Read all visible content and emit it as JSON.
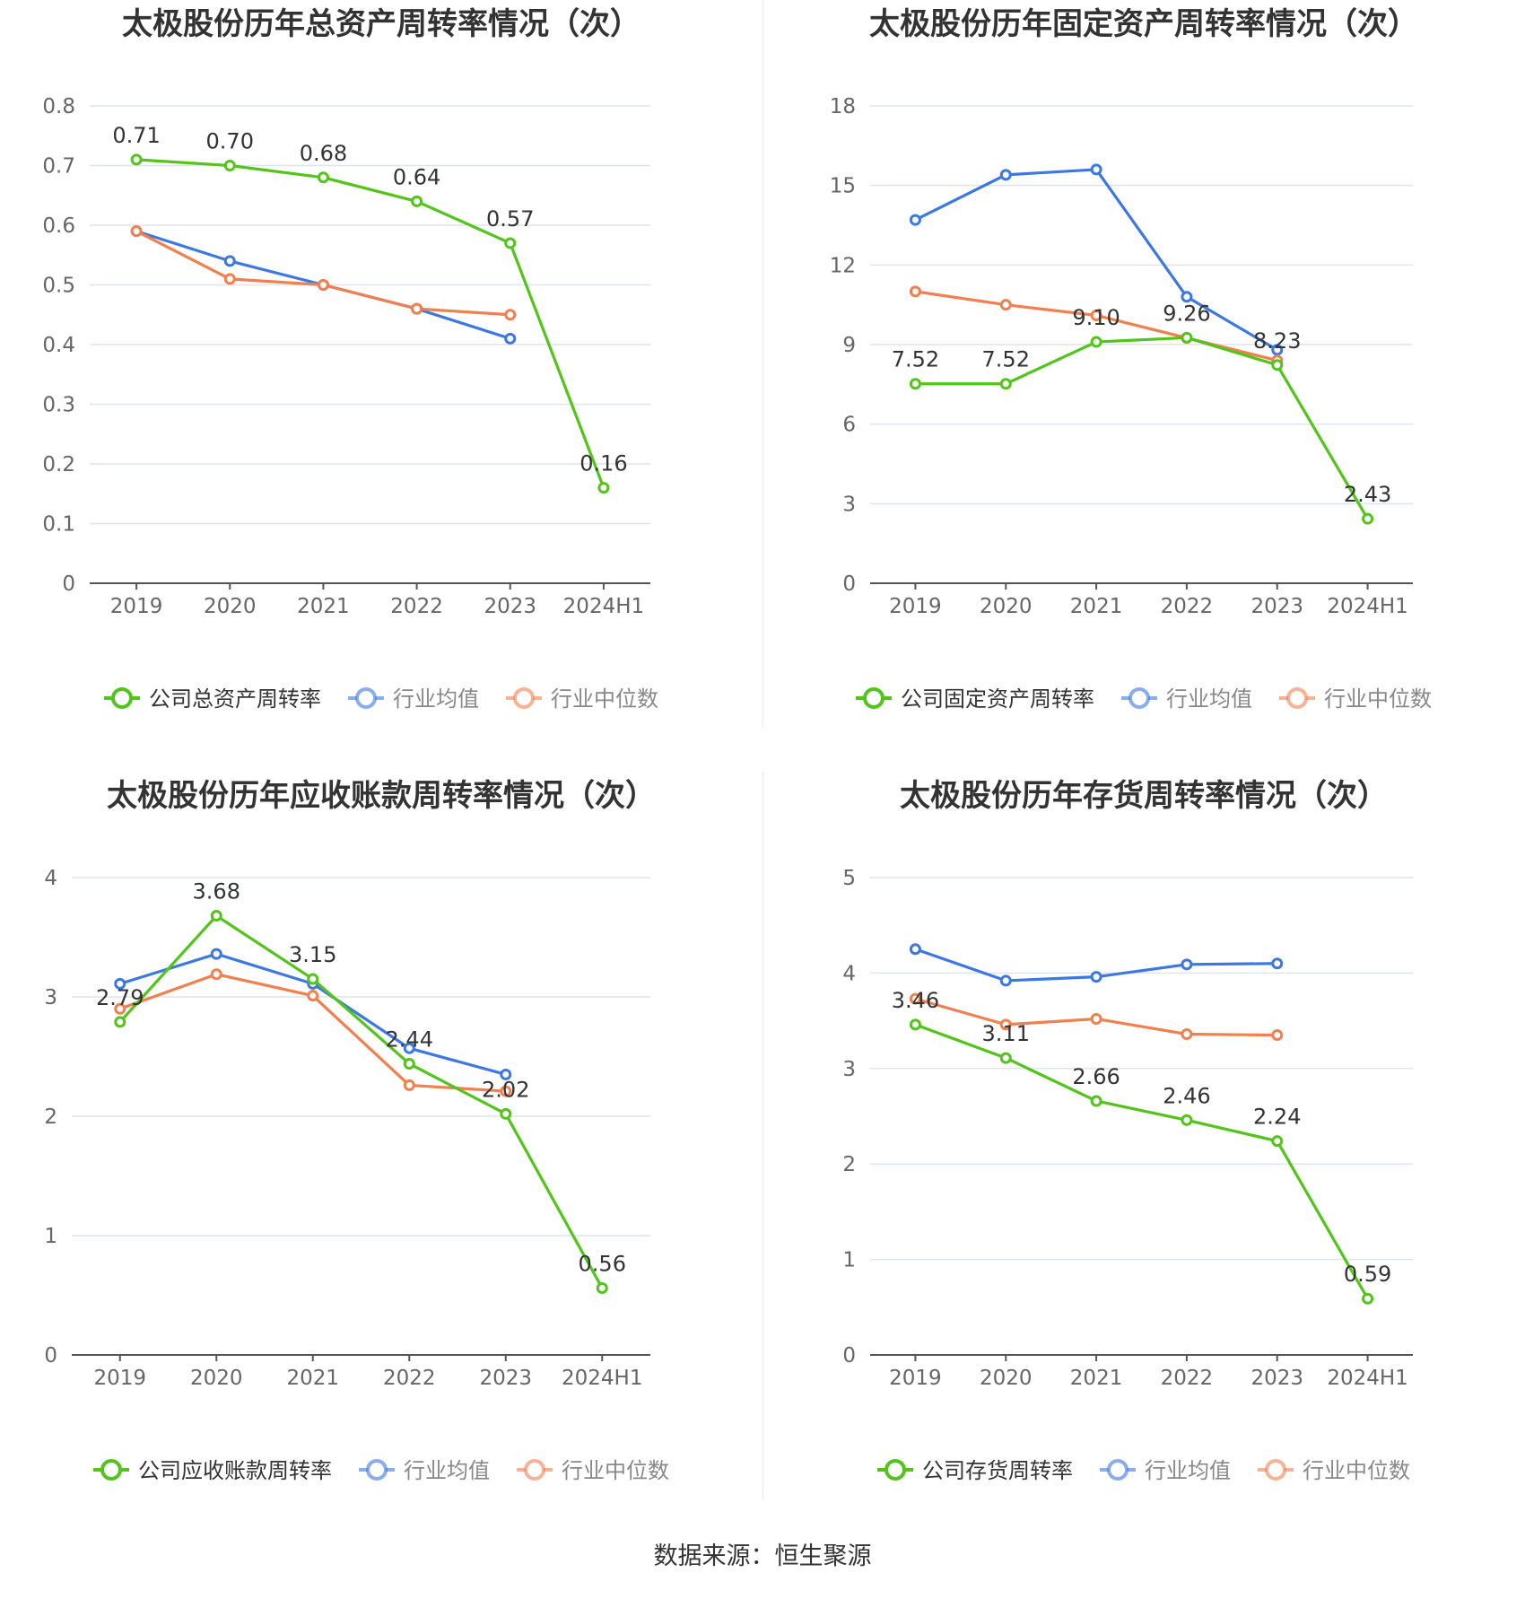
{
  "footer": {
    "source": "数据来源：恒生聚源"
  },
  "chart_data": [
    {
      "type": "line",
      "title": "太极股份历年总资产周转率情况（次）",
      "categories": [
        "2019",
        "2020",
        "2021",
        "2022",
        "2023",
        "2024H1"
      ],
      "ylim": [
        0,
        0.8
      ],
      "yticks": [
        "0",
        "0.1",
        "0.2",
        "0.3",
        "0.4",
        "0.5",
        "0.6",
        "0.7",
        "0.8"
      ],
      "grid": true,
      "legend": "bottom",
      "series": [
        {
          "name": "公司总资产周转率",
          "color": "#52c41a",
          "values": [
            0.71,
            0.7,
            0.68,
            0.64,
            0.57,
            0.16
          ],
          "labels": [
            "0.71",
            "0.70",
            "0.68",
            "0.64",
            "0.57",
            "0.16"
          ]
        },
        {
          "name": "行业均值",
          "color": "#3c78e0",
          "values": [
            0.59,
            0.54,
            0.5,
            0.46,
            0.41,
            null
          ]
        },
        {
          "name": "行业中位数",
          "color": "#f08050",
          "values": [
            0.59,
            0.51,
            0.5,
            0.46,
            0.45,
            null
          ]
        }
      ]
    },
    {
      "type": "line",
      "title": "太极股份历年固定资产周转率情况（次）",
      "categories": [
        "2019",
        "2020",
        "2021",
        "2022",
        "2023",
        "2024H1"
      ],
      "ylim": [
        0,
        18
      ],
      "yticks": [
        "0",
        "3",
        "6",
        "9",
        "12",
        "15",
        "18"
      ],
      "grid": true,
      "legend": "bottom",
      "series": [
        {
          "name": "公司固定资产周转率",
          "color": "#52c41a",
          "values": [
            7.52,
            7.52,
            9.1,
            9.26,
            8.23,
            2.43
          ],
          "labels": [
            "7.52",
            "7.52",
            "9.10",
            "9.26",
            "8.23",
            "2.43"
          ]
        },
        {
          "name": "行业均值",
          "color": "#3c78e0",
          "values": [
            13.7,
            15.4,
            15.6,
            10.8,
            8.8,
            null
          ]
        },
        {
          "name": "行业中位数",
          "color": "#f08050",
          "values": [
            11.0,
            10.5,
            10.1,
            9.25,
            8.4,
            null
          ]
        }
      ]
    },
    {
      "type": "line",
      "title": "太极股份历年应收账款周转率情况（次）",
      "categories": [
        "2019",
        "2020",
        "2021",
        "2022",
        "2023",
        "2024H1"
      ],
      "ylim": [
        0,
        4
      ],
      "yticks": [
        "0",
        "1",
        "2",
        "3",
        "4"
      ],
      "grid": true,
      "legend": "bottom",
      "series": [
        {
          "name": "公司应收账款周转率",
          "color": "#52c41a",
          "values": [
            2.79,
            3.68,
            3.15,
            2.44,
            2.02,
            0.56
          ],
          "labels": [
            "2.79",
            "3.68",
            "3.15",
            "2.44",
            "2.02",
            "0.56"
          ]
        },
        {
          "name": "行业均值",
          "color": "#3c78e0",
          "values": [
            3.11,
            3.36,
            3.11,
            2.57,
            2.35,
            null
          ]
        },
        {
          "name": "行业中位数",
          "color": "#f08050",
          "values": [
            2.9,
            3.19,
            3.01,
            2.26,
            2.21,
            null
          ]
        }
      ]
    },
    {
      "type": "line",
      "title": "太极股份历年存货周转率情况（次）",
      "categories": [
        "2019",
        "2020",
        "2021",
        "2022",
        "2023",
        "2024H1"
      ],
      "ylim": [
        0,
        5
      ],
      "yticks": [
        "0",
        "1",
        "2",
        "3",
        "4",
        "5"
      ],
      "grid": true,
      "legend": "bottom",
      "series": [
        {
          "name": "公司存货周转率",
          "color": "#52c41a",
          "values": [
            3.46,
            3.11,
            2.66,
            2.46,
            2.24,
            0.59
          ],
          "labels": [
            "3.46",
            "3.11",
            "2.66",
            "2.46",
            "2.24",
            "0.59"
          ]
        },
        {
          "name": "行业均值",
          "color": "#3c78e0",
          "values": [
            4.25,
            3.92,
            3.96,
            4.09,
            4.1,
            null
          ]
        },
        {
          "name": "行业中位数",
          "color": "#f08050",
          "values": [
            3.73,
            3.46,
            3.52,
            3.36,
            3.35,
            null
          ]
        }
      ]
    }
  ]
}
